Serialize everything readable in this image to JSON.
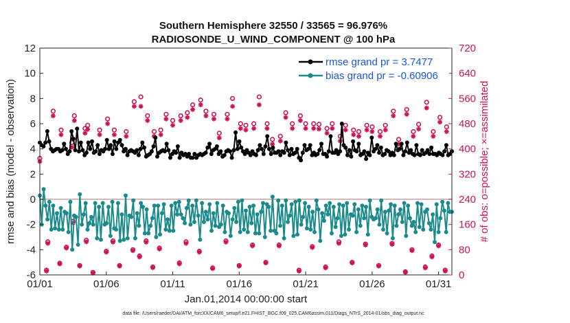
{
  "chart_data": {
    "type": "line",
    "title_line1": "Southern Hemisphere 32550 / 33565 = 96.976%",
    "title_line2": "RADIOSONDE_U_WIND_COMPONENT @ 100 hPa",
    "xlabel": "Jan.01,2014 00:00:00 start",
    "ylabel_left": "rmse and bias (model - observation)",
    "ylabel_right": "# of obs: o=possible; ×=assimilated",
    "footer": "data file: /Users/raeder/DAI/ATM_forcXX/CAM6_setup/f.e21.FHIST_BGC.f09_025.CAM6assim.011/Diags_NTrS_2014-01/obs_diag_output.nc",
    "x_tick_labels": [
      "01/01",
      "01/06",
      "01/11",
      "01/16",
      "01/21",
      "01/26",
      "01/31"
    ],
    "x_tick_days": [
      1,
      6,
      11,
      16,
      21,
      26,
      31
    ],
    "x_range_days": [
      1,
      32
    ],
    "ylim_left": [
      -6,
      12
    ],
    "yticks_left": [
      "-6",
      "-4",
      "-2",
      "0",
      "2",
      "4",
      "6",
      "8",
      "10",
      "12"
    ],
    "ylim_right": [
      0,
      720
    ],
    "yticks_right": [
      "0",
      "80",
      "160",
      "240",
      "320",
      "400",
      "480",
      "560",
      "640",
      "720"
    ],
    "legend": [
      {
        "label": "rmse grand pr = 3.7477",
        "color": "#000000"
      },
      {
        "label": "bias grand pr = -0.60906",
        "color": "#1a8a8a"
      }
    ],
    "colors": {
      "rmse": "#000000",
      "bias": "#1a8a8a",
      "obs": "#cc1155",
      "zero_line": "#c8a0a0"
    },
    "rmse": [
      4.5,
      4.3,
      4.2,
      4.5,
      5.4,
      4.6,
      4.0,
      3.8,
      3.9,
      4.0,
      4.0,
      3.8,
      3.9,
      4.4,
      4.0,
      3.6,
      3.8,
      5.4,
      4.8,
      3.9,
      5.6,
      3.8,
      4.5,
      3.9,
      3.5,
      3.7,
      4.5,
      4.0,
      4.6,
      3.7,
      3.8,
      4.3,
      3.6,
      3.9,
      3.8,
      4.0,
      4.7,
      4.0,
      4.3,
      3.6,
      4.6,
      4.0,
      4.5,
      4.7,
      4.3,
      3.8,
      4.0,
      3.5,
      3.8,
      3.9,
      3.8,
      3.7,
      3.9,
      3.5,
      4.0,
      4.5,
      4.1,
      3.4,
      3.5,
      3.6,
      3.8,
      4.2,
      4.9,
      3.4,
      3.7,
      3.8,
      3.9,
      3.8,
      4.4,
      3.9,
      3.3,
      3.6,
      3.8,
      3.7,
      4.2,
      3.3,
      3.7,
      3.5,
      3.6,
      3.4,
      3.6,
      3.3,
      3.3,
      3.6,
      3.3,
      3.5,
      3.6,
      3.5,
      3.6,
      3.7,
      4.1,
      4.4,
      3.6,
      3.9,
      4.0,
      4.2,
      3.6,
      3.8,
      3.4,
      3.5,
      3.8,
      3.9,
      3.8,
      3.3,
      3.9,
      5.3,
      4.0,
      4.6,
      4.1,
      3.8,
      3.6,
      3.9,
      3.7,
      3.5,
      3.8,
      3.6,
      3.5,
      3.9,
      4.3,
      4.0,
      3.6,
      4.2,
      5.0,
      4.0,
      3.6,
      4.1,
      3.7,
      3.7,
      3.8,
      3.5,
      3.8,
      3.7,
      4.5,
      3.9,
      3.5,
      4.0,
      3.6,
      3.7,
      4.0,
      3.3,
      3.1,
      3.7,
      4.3,
      3.9,
      4.0,
      4.3,
      3.5,
      3.7,
      3.5,
      3.6,
      3.9,
      4.4,
      3.6,
      3.6,
      3.4,
      3.8,
      5.0,
      3.7,
      3.7,
      3.9,
      3.6,
      3.8,
      6.0,
      4.3,
      4.1,
      3.5,
      3.9,
      3.4,
      4.6,
      3.9,
      3.8,
      4.4,
      3.5,
      3.6,
      3.8,
      3.2,
      3.7,
      3.5,
      4.9,
      3.8,
      4.0,
      4.3,
      3.7,
      4.1,
      3.5,
      3.6,
      3.9,
      3.8,
      3.5,
      3.7,
      3.5,
      4.4,
      3.9,
      4.0,
      4.4,
      3.5,
      3.8,
      4.5,
      3.7,
      3.9,
      3.6,
      3.5,
      4.3,
      3.6,
      3.5,
      3.9,
      3.6,
      3.7,
      3.9,
      3.6,
      4.1,
      3.6,
      3.6,
      3.5,
      3.7,
      3.6,
      3.5,
      3.8,
      4.3,
      3.5,
      3.6,
      3.8
    ],
    "bias": [
      0.3,
      -2.0,
      0.8,
      -0.5,
      -1.6,
      -0.2,
      -2.4,
      -0.5,
      -2.3,
      -1.1,
      -2.4,
      -0.7,
      -2.4,
      -1.0,
      -1.1,
      -2.6,
      -0.2,
      -4.0,
      -1.3,
      -1.4,
      -3.6,
      0.4,
      -2.0,
      -1.2,
      -0.3,
      -2.4,
      -1.9,
      -1.4,
      -2.0,
      -0.3,
      -3.1,
      -0.6,
      -3.2,
      -0.3,
      -2.0,
      -1.9,
      -0.6,
      -2.9,
      -0.2,
      -2.3,
      -2.4,
      -0.3,
      -3.3,
      -1.2,
      -3.2,
      0.3,
      -3.1,
      -1.3,
      -1.4,
      -0.1,
      -3.1,
      -1.1,
      -2.1,
      -0.3,
      -0.6,
      -2.7,
      -0.8,
      -2.7,
      -2.1,
      -1.5,
      -0.5,
      -3.0,
      -0.5,
      -2.8,
      -1.1,
      -0.4,
      -2.4,
      -1.6,
      -2.5,
      -0.5,
      -2.5,
      -0.3,
      -1.2,
      -0.2,
      -1.2,
      -1.5,
      -1.9,
      -0.7,
      -0.1,
      -2.0,
      -0.5,
      -1.8,
      -0.1,
      -1.3,
      -3.2,
      -0.3,
      -1.8,
      -1.0,
      -1.6,
      -0.4,
      -2.5,
      -1.1,
      -2.1,
      -0.3,
      -2.2,
      -2.0,
      -0.5,
      -2.6,
      -1.0,
      -1.1,
      -2.9,
      -1.6,
      -0.7,
      -1.8,
      -0.2,
      -2.6,
      -0.1,
      -2.4,
      -0.9,
      -2.6,
      -0.6,
      -1.9,
      -0.5,
      -2.7,
      -1.2,
      -2.7,
      -1.0,
      -0.3,
      -3.0,
      -0.4,
      -0.6,
      -2.5,
      0.2,
      -2.5,
      -2.7,
      -0.1,
      -2.1,
      -0.5,
      -3.1,
      -0.1,
      -1.8,
      -1.3,
      -0.4,
      -2.9,
      -0.2,
      -2.8,
      -0.1,
      -2.0,
      -1.4,
      -0.3,
      -2.3,
      -0.6,
      -2.4,
      -1.0,
      -2.6,
      -0.1,
      -0.8,
      -3.3,
      -1.1,
      -1.7,
      -0.5,
      -1.2,
      -0.3,
      -2.7,
      -0.6,
      -2.2,
      -1.5,
      -0.4,
      -2.9,
      -0.5,
      -2.8,
      -0.3,
      -2.4,
      -1.2,
      -1.3,
      -0.4,
      -2.6,
      -0.8,
      -2.1,
      -0.5,
      -1.5,
      -0.6,
      -2.8,
      -0.1,
      -1.4,
      -1.6,
      -1.5,
      -0.8,
      -2.0,
      -0.1,
      -2.4,
      -1.0,
      -2.7,
      -0.9,
      -0.4,
      -3.1,
      -0.5,
      -2.1,
      -1.2,
      -0.8,
      -1.8,
      -0.3,
      -2.9,
      -0.5,
      -1.5,
      -2.1,
      -1.8,
      -2.6,
      -0.3,
      -2.2,
      -0.4,
      -2.4,
      -1.0,
      -0.8,
      -1.9,
      -2.4,
      -1.2,
      -3.4,
      -0.4,
      -2.6,
      -1.5,
      -0.2,
      -0.9,
      -2.6,
      -0.3,
      -1.0,
      -1.0
    ],
    "obs_possible": [
      {
        "day": 1.0,
        "n": 370
      },
      {
        "day": 1.5,
        "n": 15
      },
      {
        "day": 1.6,
        "n": 105
      },
      {
        "day": 2.0,
        "n": 520
      },
      {
        "day": 2.5,
        "n": 37
      },
      {
        "day": 2.6,
        "n": 460
      },
      {
        "day": 3.0,
        "n": 88
      },
      {
        "day": 3.4,
        "n": 420
      },
      {
        "day": 3.5,
        "n": 170
      },
      {
        "day": 3.6,
        "n": 505
      },
      {
        "day": 4.0,
        "n": 30
      },
      {
        "day": 4.4,
        "n": 465
      },
      {
        "day": 4.5,
        "n": 110
      },
      {
        "day": 4.6,
        "n": 475
      },
      {
        "day": 5.0,
        "n": 8
      },
      {
        "day": 5.5,
        "n": 460
      },
      {
        "day": 6.0,
        "n": 75
      },
      {
        "day": 6.1,
        "n": 495
      },
      {
        "day": 6.5,
        "n": 108
      },
      {
        "day": 6.6,
        "n": 460
      },
      {
        "day": 7.0,
        "n": 30
      },
      {
        "day": 7.5,
        "n": 455
      },
      {
        "day": 8.0,
        "n": 80
      },
      {
        "day": 8.1,
        "n": 550
      },
      {
        "day": 8.5,
        "n": 60
      },
      {
        "day": 8.6,
        "n": 565
      },
      {
        "day": 9.0,
        "n": 108
      },
      {
        "day": 9.1,
        "n": 505
      },
      {
        "day": 9.5,
        "n": 25
      },
      {
        "day": 9.6,
        "n": 455
      },
      {
        "day": 10.0,
        "n": 85
      },
      {
        "day": 10.1,
        "n": 460
      },
      {
        "day": 10.5,
        "n": 510
      },
      {
        "day": 11.0,
        "n": 490
      },
      {
        "day": 11.5,
        "n": 38
      },
      {
        "day": 11.6,
        "n": 505
      },
      {
        "day": 12.0,
        "n": 105
      },
      {
        "day": 12.1,
        "n": 515
      },
      {
        "day": 12.5,
        "n": 540
      },
      {
        "day": 13.0,
        "n": 75
      },
      {
        "day": 13.1,
        "n": 555
      },
      {
        "day": 13.5,
        "n": 520
      },
      {
        "day": 14.0,
        "n": 22
      },
      {
        "day": 14.1,
        "n": 510
      },
      {
        "day": 14.5,
        "n": 450
      },
      {
        "day": 15.0,
        "n": 108
      },
      {
        "day": 15.1,
        "n": 510
      },
      {
        "day": 15.5,
        "n": 560
      },
      {
        "day": 16.0,
        "n": 30
      },
      {
        "day": 16.1,
        "n": 480
      },
      {
        "day": 16.5,
        "n": 475
      },
      {
        "day": 17.0,
        "n": 95
      },
      {
        "day": 17.1,
        "n": 480
      },
      {
        "day": 17.5,
        "n": 565
      },
      {
        "day": 18.0,
        "n": 40
      },
      {
        "day": 18.1,
        "n": 480
      },
      {
        "day": 18.5,
        "n": 430
      },
      {
        "day": 19.0,
        "n": 95
      },
      {
        "day": 19.1,
        "n": 440
      },
      {
        "day": 19.5,
        "n": 515
      },
      {
        "day": 20.0,
        "n": 480
      },
      {
        "day": 20.5,
        "n": 15
      },
      {
        "day": 20.6,
        "n": 505
      },
      {
        "day": 21.0,
        "n": 480
      },
      {
        "day": 21.5,
        "n": 90
      },
      {
        "day": 21.6,
        "n": 480
      },
      {
        "day": 22.0,
        "n": 478
      },
      {
        "day": 22.5,
        "n": 25
      },
      {
        "day": 22.6,
        "n": 465
      },
      {
        "day": 23.0,
        "n": 480
      },
      {
        "day": 23.5,
        "n": 105
      },
      {
        "day": 23.6,
        "n": 440
      },
      {
        "day": 24.0,
        "n": 475
      },
      {
        "day": 24.5,
        "n": 40
      },
      {
        "day": 24.6,
        "n": 460
      },
      {
        "day": 25.0,
        "n": 455
      },
      {
        "day": 25.5,
        "n": 98
      },
      {
        "day": 25.6,
        "n": 475
      },
      {
        "day": 26.0,
        "n": 470
      },
      {
        "day": 26.5,
        "n": 30
      },
      {
        "day": 26.6,
        "n": 455
      },
      {
        "day": 27.0,
        "n": 475
      },
      {
        "day": 27.5,
        "n": 100
      },
      {
        "day": 27.6,
        "n": 520
      },
      {
        "day": 28.0,
        "n": 430
      },
      {
        "day": 28.5,
        "n": 10
      },
      {
        "day": 28.6,
        "n": 525
      },
      {
        "day": 29.0,
        "n": 80
      },
      {
        "day": 29.1,
        "n": 455
      },
      {
        "day": 29.5,
        "n": 478
      },
      {
        "day": 30.0,
        "n": 25
      },
      {
        "day": 30.1,
        "n": 548
      },
      {
        "day": 30.5,
        "n": 60
      },
      {
        "day": 30.6,
        "n": 455
      },
      {
        "day": 31.0,
        "n": 95
      },
      {
        "day": 31.1,
        "n": 500
      },
      {
        "day": 31.5,
        "n": 15
      },
      {
        "day": 31.6,
        "n": 470
      }
    ],
    "obs_assimilated": [
      {
        "day": 1.0,
        "n": 360
      },
      {
        "day": 1.5,
        "n": 12
      },
      {
        "day": 1.6,
        "n": 100
      },
      {
        "day": 2.0,
        "n": 505
      },
      {
        "day": 2.5,
        "n": 35
      },
      {
        "day": 2.6,
        "n": 445
      },
      {
        "day": 3.0,
        "n": 85
      },
      {
        "day": 3.4,
        "n": 405
      },
      {
        "day": 3.5,
        "n": 165
      },
      {
        "day": 3.6,
        "n": 490
      },
      {
        "day": 4.0,
        "n": 28
      },
      {
        "day": 4.4,
        "n": 450
      },
      {
        "day": 4.5,
        "n": 105
      },
      {
        "day": 4.6,
        "n": 462
      },
      {
        "day": 5.0,
        "n": 6
      },
      {
        "day": 5.5,
        "n": 445
      },
      {
        "day": 6.0,
        "n": 72
      },
      {
        "day": 6.1,
        "n": 480
      },
      {
        "day": 6.5,
        "n": 104
      },
      {
        "day": 6.6,
        "n": 445
      },
      {
        "day": 7.0,
        "n": 28
      },
      {
        "day": 7.5,
        "n": 440
      },
      {
        "day": 8.0,
        "n": 77
      },
      {
        "day": 8.1,
        "n": 535
      },
      {
        "day": 8.5,
        "n": 57
      },
      {
        "day": 8.6,
        "n": 535
      },
      {
        "day": 9.0,
        "n": 104
      },
      {
        "day": 9.1,
        "n": 490
      },
      {
        "day": 9.5,
        "n": 23
      },
      {
        "day": 9.6,
        "n": 440
      },
      {
        "day": 10.0,
        "n": 82
      },
      {
        "day": 10.1,
        "n": 445
      },
      {
        "day": 10.5,
        "n": 495
      },
      {
        "day": 11.0,
        "n": 475
      },
      {
        "day": 11.5,
        "n": 35
      },
      {
        "day": 11.6,
        "n": 490
      },
      {
        "day": 12.0,
        "n": 100
      },
      {
        "day": 12.1,
        "n": 500
      },
      {
        "day": 12.5,
        "n": 525
      },
      {
        "day": 13.0,
        "n": 72
      },
      {
        "day": 13.1,
        "n": 540
      },
      {
        "day": 13.5,
        "n": 505
      },
      {
        "day": 14.0,
        "n": 20
      },
      {
        "day": 14.1,
        "n": 495
      },
      {
        "day": 14.5,
        "n": 435
      },
      {
        "day": 15.0,
        "n": 104
      },
      {
        "day": 15.1,
        "n": 495
      },
      {
        "day": 15.5,
        "n": 535
      },
      {
        "day": 16.0,
        "n": 28
      },
      {
        "day": 16.1,
        "n": 465
      },
      {
        "day": 16.5,
        "n": 460
      },
      {
        "day": 17.0,
        "n": 92
      },
      {
        "day": 17.1,
        "n": 465
      },
      {
        "day": 17.5,
        "n": 540
      },
      {
        "day": 18.0,
        "n": 38
      },
      {
        "day": 18.1,
        "n": 465
      },
      {
        "day": 18.5,
        "n": 415
      },
      {
        "day": 19.0,
        "n": 92
      },
      {
        "day": 19.1,
        "n": 425
      },
      {
        "day": 19.5,
        "n": 500
      },
      {
        "day": 20.0,
        "n": 465
      },
      {
        "day": 20.5,
        "n": 12
      },
      {
        "day": 20.6,
        "n": 490
      },
      {
        "day": 21.0,
        "n": 465
      },
      {
        "day": 21.5,
        "n": 87
      },
      {
        "day": 21.6,
        "n": 465
      },
      {
        "day": 22.0,
        "n": 463
      },
      {
        "day": 22.5,
        "n": 22
      },
      {
        "day": 22.6,
        "n": 450
      },
      {
        "day": 23.0,
        "n": 465
      },
      {
        "day": 23.5,
        "n": 100
      },
      {
        "day": 23.6,
        "n": 425
      },
      {
        "day": 24.0,
        "n": 460
      },
      {
        "day": 24.5,
        "n": 38
      },
      {
        "day": 24.6,
        "n": 445
      },
      {
        "day": 25.0,
        "n": 440
      },
      {
        "day": 25.5,
        "n": 95
      },
      {
        "day": 25.6,
        "n": 460
      },
      {
        "day": 26.0,
        "n": 455
      },
      {
        "day": 26.5,
        "n": 28
      },
      {
        "day": 26.6,
        "n": 440
      },
      {
        "day": 27.0,
        "n": 460
      },
      {
        "day": 27.5,
        "n": 97
      },
      {
        "day": 27.6,
        "n": 505
      },
      {
        "day": 28.0,
        "n": 415
      },
      {
        "day": 28.5,
        "n": 8
      },
      {
        "day": 28.6,
        "n": 510
      },
      {
        "day": 29.0,
        "n": 77
      },
      {
        "day": 29.1,
        "n": 440
      },
      {
        "day": 29.5,
        "n": 463
      },
      {
        "day": 30.0,
        "n": 22
      },
      {
        "day": 30.1,
        "n": 530
      },
      {
        "day": 30.5,
        "n": 57
      },
      {
        "day": 30.6,
        "n": 440
      },
      {
        "day": 31.0,
        "n": 92
      },
      {
        "day": 31.1,
        "n": 485
      },
      {
        "day": 31.5,
        "n": 12
      },
      {
        "day": 31.6,
        "n": 455
      }
    ]
  }
}
